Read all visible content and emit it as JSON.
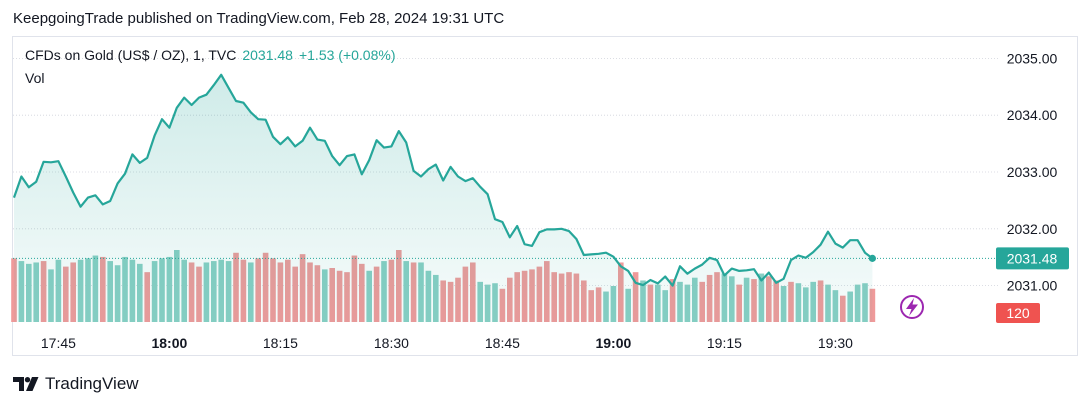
{
  "header": {
    "published": "KeepgoingTrade published on TradingView.com, Feb 28, 2024 19:31 UTC"
  },
  "legend": {
    "symbol": "CFDs on Gold (US$ / OZ), 1, TVC",
    "last": "2031.48",
    "change": "+1.53 (+0.08%)",
    "volume_label": "Vol"
  },
  "footer": {
    "brand": "TradingView"
  },
  "colors": {
    "line": "#26a69a",
    "area_fill": "#26a69a",
    "vol_up": "#88cfc4",
    "vol_down": "#ef9a9a",
    "price_tag": "#26a69a",
    "vol_tag": "#ef5350",
    "bolt": "#9c27b0"
  },
  "chart_data": {
    "type": "area",
    "x_ticks": [
      {
        "label": "17:45",
        "i": 6,
        "bold": false
      },
      {
        "label": "18:00",
        "i": 21,
        "bold": true
      },
      {
        "label": "18:15",
        "i": 36,
        "bold": false
      },
      {
        "label": "18:30",
        "i": 51,
        "bold": false
      },
      {
        "label": "18:45",
        "i": 66,
        "bold": false
      },
      {
        "label": "19:00",
        "i": 81,
        "bold": true
      },
      {
        "label": "19:15",
        "i": 96,
        "bold": false
      },
      {
        "label": "19:30",
        "i": 111,
        "bold": false
      }
    ],
    "y_ticks": [
      "2035.00",
      "2034.00",
      "2033.00",
      "2032.00",
      "2031.00"
    ],
    "ylim": [
      2030.8,
      2035.2
    ],
    "last_price_label": "2031.48",
    "last_volume_label": "120",
    "prices": [
      2032.55,
      2032.92,
      2032.73,
      2032.83,
      2033.18,
      2033.17,
      2033.19,
      2032.92,
      2032.64,
      2032.39,
      2032.55,
      2032.59,
      2032.43,
      2032.49,
      2032.8,
      2032.97,
      2033.31,
      2033.16,
      2033.25,
      2033.64,
      2033.93,
      2033.78,
      2034.13,
      2034.31,
      2034.18,
      2034.31,
      2034.36,
      2034.53,
      2034.71,
      2034.48,
      2034.25,
      2034.22,
      2034.05,
      2033.93,
      2033.92,
      2033.62,
      2033.49,
      2033.61,
      2033.45,
      2033.55,
      2033.78,
      2033.57,
      2033.55,
      2033.28,
      2033.12,
      2033.28,
      2033.31,
      2032.96,
      2033.21,
      2033.56,
      2033.43,
      2033.45,
      2033.72,
      2033.52,
      2033.02,
      2032.92,
      2033.05,
      2033.13,
      2032.85,
      2033.09,
      2032.92,
      2032.84,
      2032.89,
      2032.74,
      2032.61,
      2032.17,
      2032.12,
      2031.85,
      2032.05,
      2031.73,
      2031.7,
      2031.94,
      2031.99,
      2031.99,
      2032.0,
      2031.96,
      2031.82,
      2031.54,
      2031.55,
      2031.56,
      2031.58,
      2031.51,
      2031.34,
      2031.26,
      2031.05,
      2031.01,
      2031.1,
      2031.04,
      2031.16,
      2031.0,
      2031.34,
      2031.21,
      2031.3,
      2031.37,
      2031.49,
      2031.45,
      2031.18,
      2031.3,
      2031.26,
      2031.27,
      2031.29,
      2031.09,
      2031.23,
      2031.05,
      2031.12,
      2031.45,
      2031.53,
      2031.49,
      2031.59,
      2031.72,
      2031.95,
      2031.74,
      2031.67,
      2031.8,
      2031.8,
      2031.58,
      2031.48
    ],
    "volumes": [
      {
        "v": 230,
        "up": false
      },
      {
        "v": 220,
        "up": true
      },
      {
        "v": 210,
        "up": true
      },
      {
        "v": 215,
        "up": true
      },
      {
        "v": 220,
        "up": false
      },
      {
        "v": 190,
        "up": true
      },
      {
        "v": 225,
        "up": true
      },
      {
        "v": 200,
        "up": false
      },
      {
        "v": 215,
        "up": false
      },
      {
        "v": 225,
        "up": true
      },
      {
        "v": 230,
        "up": true
      },
      {
        "v": 240,
        "up": true
      },
      {
        "v": 235,
        "up": false
      },
      {
        "v": 220,
        "up": true
      },
      {
        "v": 205,
        "up": true
      },
      {
        "v": 235,
        "up": true
      },
      {
        "v": 225,
        "up": true
      },
      {
        "v": 210,
        "up": true
      },
      {
        "v": 180,
        "up": false
      },
      {
        "v": 220,
        "up": true
      },
      {
        "v": 230,
        "up": true
      },
      {
        "v": 235,
        "up": true
      },
      {
        "v": 260,
        "up": true
      },
      {
        "v": 225,
        "up": true
      },
      {
        "v": 215,
        "up": false
      },
      {
        "v": 200,
        "up": false
      },
      {
        "v": 215,
        "up": true
      },
      {
        "v": 220,
        "up": true
      },
      {
        "v": 225,
        "up": true
      },
      {
        "v": 220,
        "up": true
      },
      {
        "v": 250,
        "up": false
      },
      {
        "v": 225,
        "up": false
      },
      {
        "v": 215,
        "up": true
      },
      {
        "v": 230,
        "up": false
      },
      {
        "v": 250,
        "up": false
      },
      {
        "v": 230,
        "up": false
      },
      {
        "v": 215,
        "up": false
      },
      {
        "v": 225,
        "up": false
      },
      {
        "v": 200,
        "up": false
      },
      {
        "v": 245,
        "up": false
      },
      {
        "v": 215,
        "up": false
      },
      {
        "v": 205,
        "up": false
      },
      {
        "v": 190,
        "up": true
      },
      {
        "v": 195,
        "up": false
      },
      {
        "v": 185,
        "up": false
      },
      {
        "v": 180,
        "up": false
      },
      {
        "v": 240,
        "up": false
      },
      {
        "v": 210,
        "up": false
      },
      {
        "v": 185,
        "up": true
      },
      {
        "v": 200,
        "up": false
      },
      {
        "v": 220,
        "up": true
      },
      {
        "v": 225,
        "up": false
      },
      {
        "v": 260,
        "up": false
      },
      {
        "v": 220,
        "up": true
      },
      {
        "v": 215,
        "up": false
      },
      {
        "v": 215,
        "up": true
      },
      {
        "v": 185,
        "up": true
      },
      {
        "v": 170,
        "up": true
      },
      {
        "v": 150,
        "up": false
      },
      {
        "v": 145,
        "up": false
      },
      {
        "v": 160,
        "up": false
      },
      {
        "v": 200,
        "up": false
      },
      {
        "v": 215,
        "up": false
      },
      {
        "v": 145,
        "up": true
      },
      {
        "v": 135,
        "up": true
      },
      {
        "v": 140,
        "up": true
      },
      {
        "v": 120,
        "up": false
      },
      {
        "v": 160,
        "up": false
      },
      {
        "v": 180,
        "up": false
      },
      {
        "v": 185,
        "up": false
      },
      {
        "v": 190,
        "up": false
      },
      {
        "v": 200,
        "up": false
      },
      {
        "v": 220,
        "up": false
      },
      {
        "v": 180,
        "up": false
      },
      {
        "v": 175,
        "up": false
      },
      {
        "v": 180,
        "up": false
      },
      {
        "v": 175,
        "up": false
      },
      {
        "v": 150,
        "up": false
      },
      {
        "v": 115,
        "up": false
      },
      {
        "v": 125,
        "up": false
      },
      {
        "v": 110,
        "up": true
      },
      {
        "v": 130,
        "up": true
      },
      {
        "v": 215,
        "up": false
      },
      {
        "v": 120,
        "up": true
      },
      {
        "v": 180,
        "up": false
      },
      {
        "v": 150,
        "up": true
      },
      {
        "v": 135,
        "up": false
      },
      {
        "v": 135,
        "up": true
      },
      {
        "v": 115,
        "up": true
      },
      {
        "v": 155,
        "up": false
      },
      {
        "v": 145,
        "up": true
      },
      {
        "v": 135,
        "up": true
      },
      {
        "v": 160,
        "up": true
      },
      {
        "v": 145,
        "up": false
      },
      {
        "v": 170,
        "up": false
      },
      {
        "v": 180,
        "up": false
      },
      {
        "v": 175,
        "up": true
      },
      {
        "v": 165,
        "up": true
      },
      {
        "v": 135,
        "up": false
      },
      {
        "v": 160,
        "up": true
      },
      {
        "v": 155,
        "up": false
      },
      {
        "v": 175,
        "up": true
      },
      {
        "v": 165,
        "up": false
      },
      {
        "v": 150,
        "up": false
      },
      {
        "v": 130,
        "up": true
      },
      {
        "v": 145,
        "up": false
      },
      {
        "v": 140,
        "up": true
      },
      {
        "v": 125,
        "up": true
      },
      {
        "v": 145,
        "up": true
      },
      {
        "v": 150,
        "up": false
      },
      {
        "v": 135,
        "up": true
      },
      {
        "v": 115,
        "up": true
      },
      {
        "v": 95,
        "up": false
      },
      {
        "v": 110,
        "up": true
      },
      {
        "v": 135,
        "up": true
      },
      {
        "v": 140,
        "up": true
      },
      {
        "v": 120,
        "up": false
      }
    ]
  }
}
